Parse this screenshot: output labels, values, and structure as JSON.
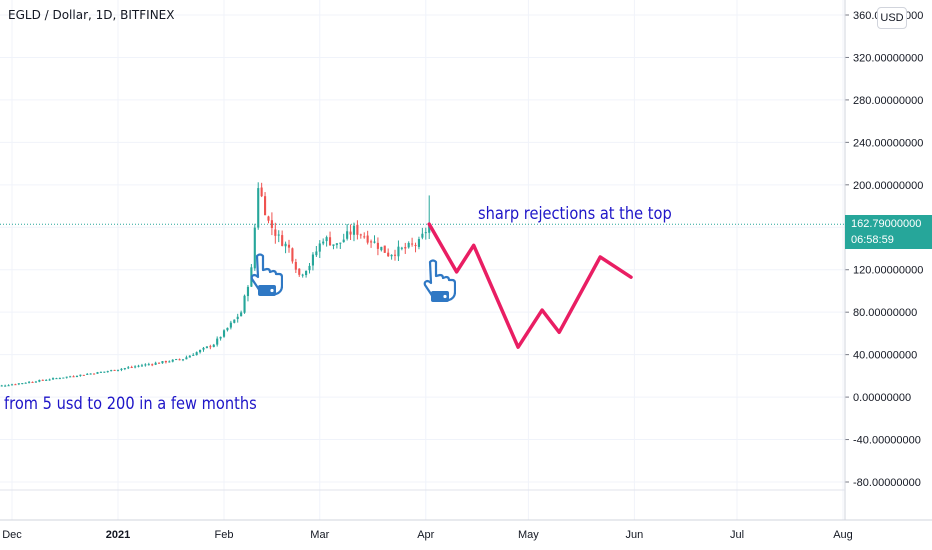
{
  "header": {
    "title": "EGLD / Dollar, 1D, BITFINEX",
    "currency_badge": "USD"
  },
  "last_price": {
    "value": "162.79000000",
    "countdown": "06:58:59"
  },
  "annotations": {
    "top_note": "sharp rejections at the top",
    "bottom_note": "from 5 usd to 200 in a few months"
  },
  "colors": {
    "up": "#26a69a",
    "down": "#ef5350",
    "projection": "#e91e63",
    "annotation_text": "#1f16c8",
    "price_line": "#26a69a",
    "hand_icon": "#2f78c4"
  },
  "icons": [
    "pointing-hand-icon",
    "pointing-hand-icon"
  ],
  "chart_data": {
    "type": "candlestick",
    "title": "EGLD / Dollar, 1D, BITFINEX",
    "y_axis": {
      "position": "right",
      "ylim": [
        -95,
        368
      ],
      "tick_values": [
        360,
        320,
        280,
        240,
        200,
        160,
        120,
        80,
        40,
        0,
        -40,
        -80
      ],
      "tick_labels": [
        "360.00000000",
        "320.00000000",
        "280.00000000",
        "240.00000000",
        "200.00000000",
        "160.00000000",
        "120.00000000",
        "80.00000000",
        "40.00000000",
        "0.00000000",
        "-40.00000000",
        "-80.00000000"
      ]
    },
    "x_axis": {
      "range": [
        "2020-11-24",
        "2021-08-14"
      ],
      "tick_labels": [
        "Dec",
        "2021",
        "Feb",
        "Mar",
        "Apr",
        "May",
        "Jun",
        "Jul",
        "Aug"
      ],
      "tick_dates": [
        "2020-12-01",
        "2021-01-01",
        "2021-02-01",
        "2021-03-01",
        "2021-04-01",
        "2021-05-01",
        "2021-06-01",
        "2021-07-01",
        "2021-08-01"
      ]
    },
    "grid": true,
    "last_price": 162.79,
    "price_waypoints": [
      [
        "2020-11-24",
        9
      ],
      [
        "2020-12-10",
        16
      ],
      [
        "2020-12-28",
        24
      ],
      [
        "2021-01-08",
        30
      ],
      [
        "2021-01-20",
        36
      ],
      [
        "2021-01-29",
        50
      ],
      [
        "2021-02-06",
        80
      ],
      [
        "2021-02-09",
        120
      ],
      [
        "2021-02-11",
        200
      ],
      [
        "2021-02-14",
        165
      ],
      [
        "2021-02-17",
        150
      ],
      [
        "2021-02-20",
        140
      ],
      [
        "2021-02-23",
        115
      ],
      [
        "2021-02-26",
        125
      ],
      [
        "2021-03-02",
        150
      ],
      [
        "2021-03-06",
        143
      ],
      [
        "2021-03-11",
        158
      ],
      [
        "2021-03-16",
        148
      ],
      [
        "2021-03-21",
        135
      ],
      [
        "2021-03-26",
        140
      ],
      [
        "2021-03-30",
        145
      ],
      [
        "2021-04-02",
        162.79
      ]
    ],
    "projection": {
      "name": "",
      "points": [
        [
          "2021-04-02",
          163
        ],
        [
          "2021-04-10",
          118
        ],
        [
          "2021-04-15",
          143
        ],
        [
          "2021-04-28",
          47
        ],
        [
          "2021-05-05",
          82
        ],
        [
          "2021-05-10",
          61
        ],
        [
          "2021-05-22",
          132
        ],
        [
          "2021-05-31",
          113
        ]
      ]
    }
  }
}
